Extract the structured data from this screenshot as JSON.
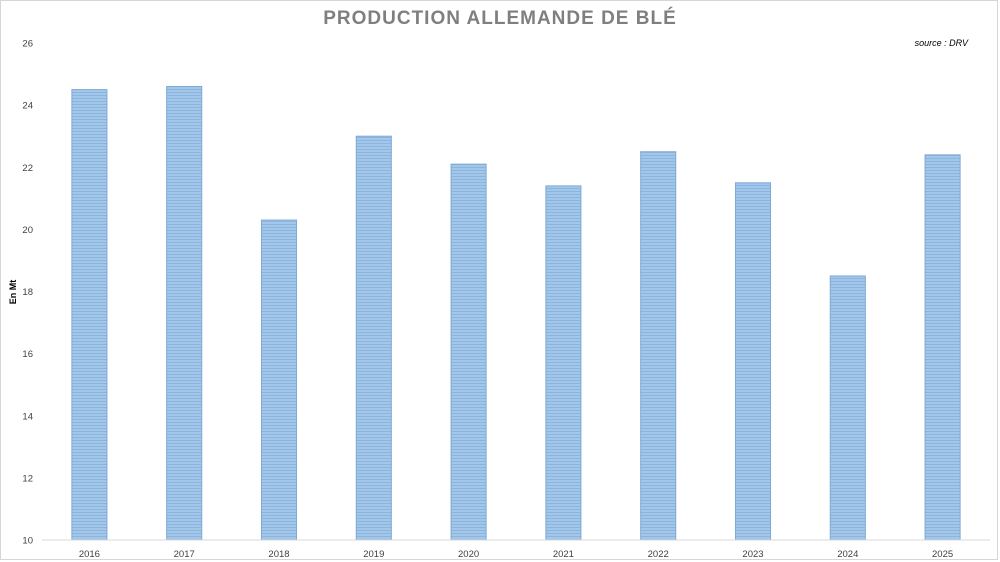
{
  "chart_data": {
    "type": "bar",
    "title": "PRODUCTION ALLEMANDE DE BLÉ",
    "source": "source : DRV",
    "xlabel": "",
    "ylabel": "En Mt",
    "categories": [
      "2016",
      "2017",
      "2018",
      "2019",
      "2020",
      "2021",
      "2022",
      "2023",
      "2024",
      "2025"
    ],
    "values": [
      24.5,
      24.6,
      20.3,
      23.0,
      22.1,
      21.4,
      22.5,
      21.5,
      18.5,
      22.4
    ],
    "ylim": [
      10,
      26
    ],
    "yticks": [
      "10",
      "12",
      "14",
      "16",
      "18",
      "20",
      "22",
      "24",
      "26"
    ],
    "grid": false,
    "legend": "none",
    "colors": {
      "bar_fill": "#9dc3e6",
      "bar_stripe": "#8ab4de",
      "bar_edge": "#7fa9d6",
      "title": "#7f7f7f",
      "axis": "#d9d9d9"
    }
  }
}
